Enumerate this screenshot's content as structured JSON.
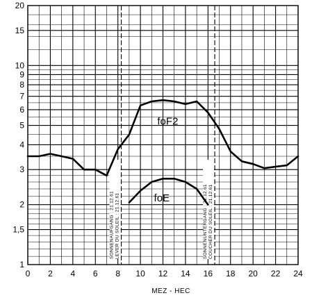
{
  "chart_data": {
    "type": "line",
    "title": "",
    "xlabel": "MEZ - HEC",
    "ylabel": "",
    "xlim": [
      0,
      24
    ],
    "ylim": [
      1,
      20
    ],
    "yscale": "log",
    "grid": true,
    "x_ticks": [
      0,
      2,
      4,
      6,
      8,
      10,
      12,
      14,
      16,
      18,
      20,
      22,
      24
    ],
    "x_tick_labels": [
      "0",
      "2",
      "4",
      "6",
      "8",
      "10",
      "12",
      "14",
      "16",
      "18",
      "20",
      "22",
      "24"
    ],
    "y_ticks": [
      1,
      1.5,
      2,
      3,
      4,
      5,
      6,
      7,
      8,
      9,
      10,
      15,
      20
    ],
    "y_tick_labels": [
      "1",
      "1,5",
      "2",
      "3",
      "4",
      "5",
      "6",
      "7",
      "8",
      "9",
      "10",
      "15",
      "20"
    ],
    "series": [
      {
        "name": "foF2",
        "x": [
          0,
          1,
          2,
          3,
          4,
          5,
          6,
          7,
          8,
          9,
          10,
          11,
          12,
          13,
          14,
          15,
          16,
          17,
          18,
          19,
          20,
          21,
          22,
          23,
          24
        ],
        "y": [
          3.5,
          3.5,
          3.6,
          3.5,
          3.4,
          3.0,
          3.0,
          2.8,
          3.8,
          4.5,
          6.3,
          6.6,
          6.7,
          6.6,
          6.4,
          6.6,
          5.8,
          4.8,
          3.7,
          3.3,
          3.2,
          3.05,
          3.1,
          3.15,
          3.5
        ]
      },
      {
        "name": "foE",
        "x": [
          9,
          10,
          11,
          12,
          13,
          14,
          15,
          16
        ],
        "y": [
          2.05,
          2.35,
          2.6,
          2.7,
          2.7,
          2.6,
          2.4,
          2.0
        ]
      }
    ],
    "vertical_lines": [
      {
        "x": 8.3,
        "label_lines": [
          "SONNENAUFGANG : 21.12.61",
          "LEVER DU SOLEIL : 21.12.61"
        ]
      },
      {
        "x": 16.6,
        "label_lines": [
          "SONNENUNTERGANG : 21.12.61",
          "COUCHER DU SOLEIL : 21.12.61"
        ]
      }
    ]
  }
}
